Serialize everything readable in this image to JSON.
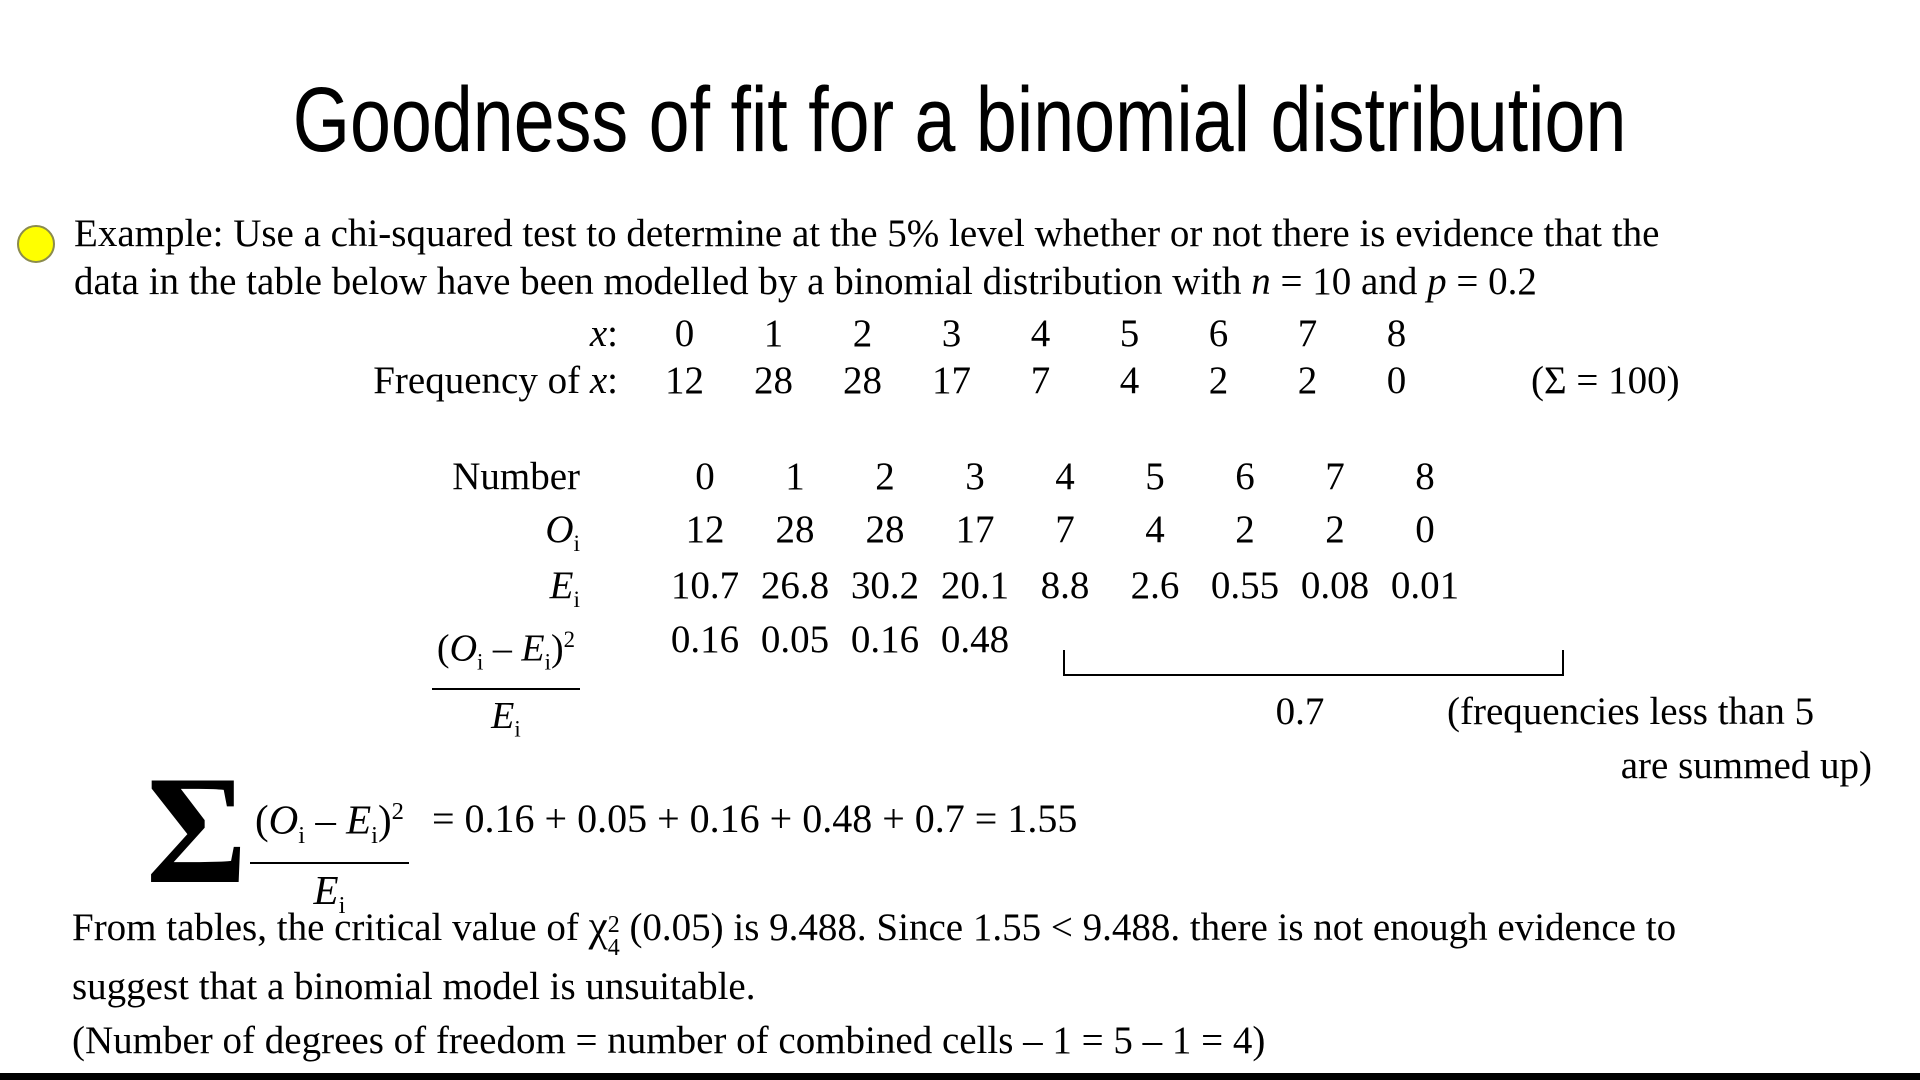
{
  "title": "Goodness of fit for a binomial distribution",
  "example": {
    "line1": "Example: Use a chi-squared test to determine at the 5% level whether or not there is evidence that the",
    "line2": {
      "t1": "data in the table below have been modelled by a binomial distribution with ",
      "n": "n",
      "t2": " = 10 and ",
      "p": "p",
      "t3": " = 0.2"
    }
  },
  "freq_table": {
    "row1_label": {
      "x": "x",
      "colon": ":"
    },
    "x_values": [
      "0",
      "1",
      "2",
      "3",
      "4",
      "5",
      "6",
      "7",
      "8"
    ],
    "row2_label": {
      "prefix": "Frequency of ",
      "x": "x",
      "colon": ":"
    },
    "freq_values": [
      "12",
      "28",
      "28",
      "17",
      "7",
      "4",
      "2",
      "2",
      "0"
    ],
    "sum_note": "(Σ = 100)"
  },
  "obs_table": {
    "number_label": "Number",
    "o_label": {
      "sym": "O",
      "sub": "i"
    },
    "e_label": {
      "sym": "E",
      "sub": "i"
    },
    "number_values": [
      "0",
      "1",
      "2",
      "3",
      "4",
      "5",
      "6",
      "7",
      "8"
    ],
    "observed": [
      "12",
      "28",
      "28",
      "17",
      "7",
      "4",
      "2",
      "2",
      "0"
    ],
    "expected": [
      "10.7",
      "26.8",
      "30.2",
      "20.1",
      "8.8",
      "2.6",
      "0.55",
      "0.08",
      "0.01"
    ],
    "chi_terms": [
      "0.16",
      "0.05",
      "0.16",
      "0.48"
    ],
    "combined_value": "0.7",
    "combine_note_line1": "(frequencies less than 5",
    "combine_note_line2": "are summed up)"
  },
  "fraction": {
    "num": {
      "open": "(",
      "O": "O",
      "sub1": "i",
      "minus": " – ",
      "E": "E",
      "sub2": "i",
      "close": ")",
      "sup": "2"
    },
    "den": {
      "E": "E",
      "sub": "i"
    }
  },
  "sum_line": {
    "sigma": "Σ",
    "equation": "=  0.16 + 0.05 + 0.16 + 0.48 + 0.7 = 1.55"
  },
  "conclusion": {
    "line1_pre": "From tables, the critical value of ",
    "chi": "χ",
    "chi_sup": "2",
    "chi_sub": "4",
    "line1_post": " (0.05) is 9.488. Since 1.55 < 9.488. there is not enough evidence to",
    "line2": "suggest that a binomial model is unsuitable.",
    "line3": "(Number of degrees of freedom = number of combined cells – 1 = 5 – 1 = 4)"
  },
  "colors": {
    "background": "#ffffff",
    "text": "#000000",
    "bullet_fill": "#ffff00",
    "bullet_border": "#8b8b4d",
    "bottom_bar": "#000000"
  }
}
